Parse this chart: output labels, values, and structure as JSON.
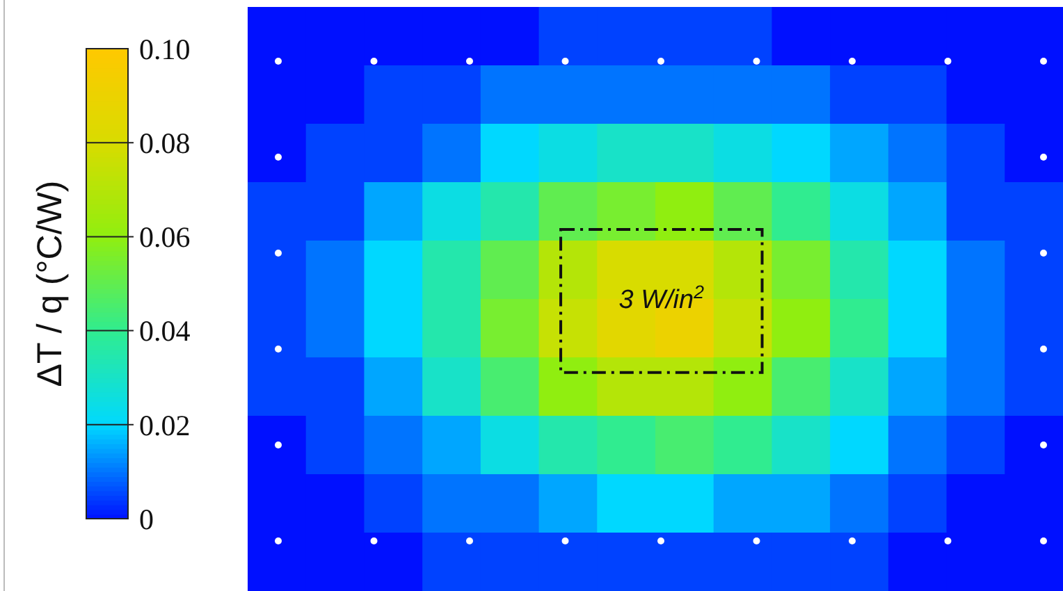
{
  "chart_data": {
    "type": "heatmap",
    "clabel": "ΔT / q (°C/W)",
    "categories": [
      null,
      null,
      null,
      null,
      null,
      null,
      null,
      null,
      null,
      null,
      null,
      null,
      null,
      null
    ],
    "y_categories": [
      null,
      null,
      null,
      null,
      null,
      null,
      null,
      null,
      null,
      null
    ],
    "cells": [
      [
        0,
        0,
        0,
        0,
        0,
        0.005,
        0.005,
        0.005,
        0.005,
        0,
        0,
        0,
        0,
        0
      ],
      [
        0,
        0,
        0.005,
        0.005,
        0.01,
        0.01,
        0.01,
        0.01,
        0.01,
        0.01,
        0.005,
        0.005,
        0,
        0
      ],
      [
        0,
        0.005,
        0.005,
        0.01,
        0.02,
        0.025,
        0.03,
        0.03,
        0.025,
        0.02,
        0.015,
        0.01,
        0.005,
        0
      ],
      [
        0.005,
        0.005,
        0.015,
        0.025,
        0.035,
        0.05,
        0.055,
        0.06,
        0.05,
        0.04,
        0.025,
        0.015,
        0.005,
        0.005
      ],
      [
        0.005,
        0.01,
        0.02,
        0.035,
        0.05,
        0.07,
        0.08,
        0.08,
        0.07,
        0.055,
        0.035,
        0.02,
        0.01,
        0.005
      ],
      [
        0.005,
        0.01,
        0.02,
        0.035,
        0.055,
        0.075,
        0.085,
        0.09,
        0.075,
        0.06,
        0.04,
        0.02,
        0.01,
        0.005
      ],
      [
        0.005,
        0.005,
        0.015,
        0.03,
        0.045,
        0.06,
        0.07,
        0.07,
        0.06,
        0.045,
        0.03,
        0.015,
        0.01,
        0.005
      ],
      [
        0,
        0.005,
        0.01,
        0.015,
        0.025,
        0.035,
        0.04,
        0.045,
        0.04,
        0.03,
        0.02,
        0.01,
        0.005,
        0
      ],
      [
        0,
        0,
        0.005,
        0.01,
        0.01,
        0.015,
        0.02,
        0.02,
        0.015,
        0.015,
        0.01,
        0.005,
        0,
        0
      ],
      [
        0,
        0,
        0,
        0.005,
        0.005,
        0.005,
        0.005,
        0.005,
        0.005,
        0.005,
        0.005,
        0,
        0,
        0
      ]
    ],
    "clim": [
      0,
      0.1
    ],
    "cticks": [
      0,
      0.02,
      0.04,
      0.06,
      0.08,
      {
        "value": 0.1,
        "label": "0.10"
      }
    ],
    "annotations": [
      "3 W/in$^{2}$"
    ]
  }
}
